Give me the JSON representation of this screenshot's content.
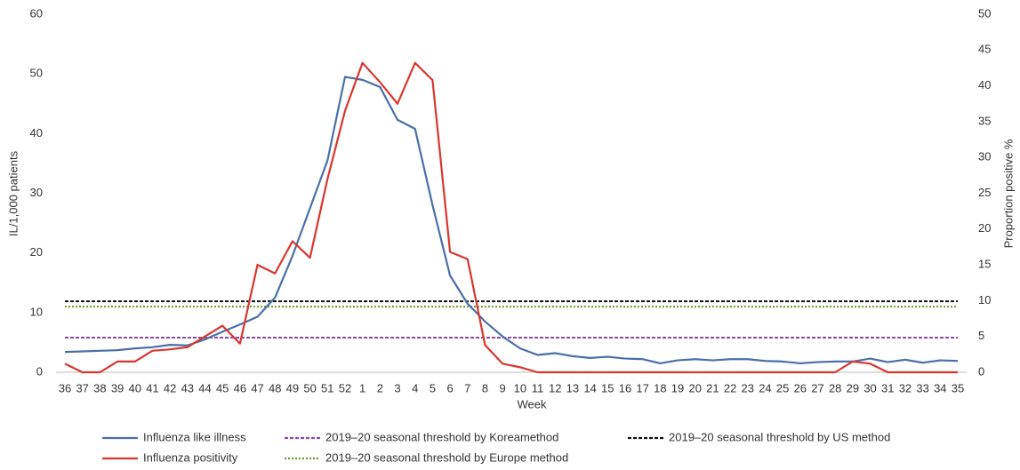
{
  "chart_data": {
    "type": "line",
    "x_label": "Week",
    "y_label": "IL/1,000 patients",
    "y2_label": "Proportion positive %",
    "categories": [
      "36",
      "37",
      "38",
      "39",
      "40",
      "41",
      "42",
      "43",
      "44",
      "45",
      "46",
      "47",
      "48",
      "49",
      "50",
      "51",
      "52",
      "1",
      "2",
      "3",
      "4",
      "5",
      "6",
      "7",
      "8",
      "9",
      "10",
      "11",
      "12",
      "13",
      "14",
      "15",
      "16",
      "17",
      "18",
      "19",
      "20",
      "21",
      "22",
      "23",
      "24",
      "25",
      "26",
      "27",
      "28",
      "29",
      "30",
      "31",
      "32",
      "33",
      "34",
      "35"
    ],
    "ylim": [
      0,
      60
    ],
    "yticks": [
      0,
      10,
      20,
      30,
      40,
      50,
      60
    ],
    "y2lim": [
      0,
      50
    ],
    "y2ticks": [
      0,
      5,
      10,
      15,
      20,
      25,
      30,
      35,
      40,
      45,
      50
    ],
    "series": [
      {
        "name": "Influenza like illness",
        "color": "#4a6fa8",
        "values": [
          3.4,
          3.5,
          3.6,
          3.7,
          4.0,
          4.2,
          4.6,
          4.5,
          5.5,
          6.8,
          8.0,
          9.3,
          12.5,
          19.5,
          27.5,
          35.5,
          49.5,
          49.0,
          47.8,
          42.3,
          40.8,
          28.0,
          16.2,
          11.5,
          8.5,
          6.0,
          4.0,
          2.9,
          3.2,
          2.7,
          2.4,
          2.6,
          2.3,
          2.2,
          1.5,
          2.0,
          2.2,
          2.0,
          2.2,
          2.2,
          1.9,
          1.8,
          1.5,
          1.7,
          1.8,
          1.8,
          2.3,
          1.7,
          2.1,
          1.6,
          2.0,
          1.9
        ]
      },
      {
        "name": "Influenza positivity",
        "color": "#d9362e",
        "axis": "y2",
        "values": [
          1.2,
          0,
          0,
          1.5,
          1.5,
          3.0,
          3.2,
          3.5,
          5.0,
          6.5,
          4.0,
          15.0,
          13.8,
          18.3,
          16.0,
          27,
          36.5,
          43.2,
          40.5,
          37.5,
          43.2,
          40.8,
          16.8,
          15.8,
          3.8,
          1.2,
          0.7,
          0,
          0,
          0,
          0,
          0,
          0,
          0,
          0,
          0,
          0,
          0,
          0,
          0,
          0,
          0,
          0,
          0,
          0,
          1.5,
          1.2,
          0,
          0,
          0,
          0,
          0
        ]
      }
    ],
    "thresholds": [
      {
        "name": "2019–20 seasonal threshold by Koreamethod",
        "color": "#8e44ad",
        "value": 5.8,
        "style": "dashed"
      },
      {
        "name": "2019–20 seasonal threshold by US method",
        "color": "#111111",
        "value": 11.9,
        "style": "dashed"
      },
      {
        "name": "2019–20 seasonal threshold by Europe method",
        "color": "#6b9a2a",
        "value": 11.0,
        "style": "dotted"
      }
    ]
  }
}
